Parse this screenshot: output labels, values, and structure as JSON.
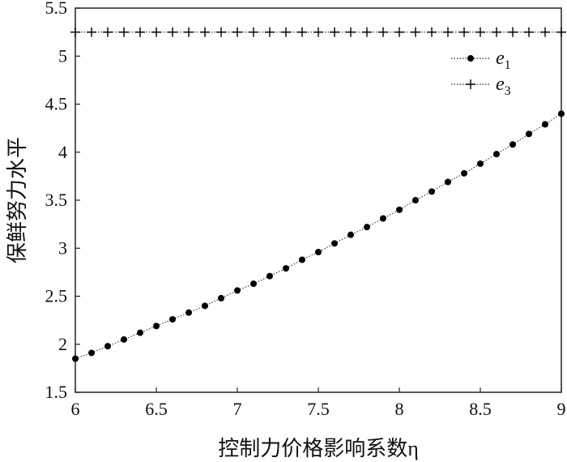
{
  "chart_data": {
    "type": "line",
    "title": "",
    "xlabel": "控制力价格影响系数η",
    "ylabel": "保鲜努力水平",
    "xlim": [
      6,
      9
    ],
    "ylim": [
      1.5,
      5.5
    ],
    "xticks": [
      "6",
      "6.5",
      "7",
      "7.5",
      "8",
      "8.5",
      "9"
    ],
    "yticks": [
      "1.5",
      "2",
      "2.5",
      "3",
      "3.5",
      "4",
      "4.5",
      "5",
      "5.5"
    ],
    "grid": false,
    "legend_position": "top-right",
    "series": [
      {
        "name": "e1",
        "marker": "dot",
        "line": "dotted",
        "x": [
          6.0,
          6.1,
          6.2,
          6.3,
          6.4,
          6.5,
          6.6,
          6.7,
          6.8,
          6.9,
          7.0,
          7.1,
          7.2,
          7.3,
          7.4,
          7.5,
          7.6,
          7.7,
          7.8,
          7.9,
          8.0,
          8.1,
          8.2,
          8.3,
          8.4,
          8.5,
          8.6,
          8.7,
          8.8,
          8.9,
          9.0
        ],
        "y": [
          1.85,
          1.91,
          1.98,
          2.05,
          2.12,
          2.19,
          2.26,
          2.33,
          2.4,
          2.48,
          2.56,
          2.63,
          2.71,
          2.79,
          2.88,
          2.96,
          3.05,
          3.14,
          3.22,
          3.31,
          3.4,
          3.5,
          3.59,
          3.69,
          3.78,
          3.88,
          3.98,
          4.08,
          4.19,
          4.29,
          4.4
        ]
      },
      {
        "name": "e3",
        "marker": "plus",
        "line": "dotted",
        "x": [
          6.0,
          6.1,
          6.2,
          6.3,
          6.4,
          6.5,
          6.6,
          6.7,
          6.8,
          6.9,
          7.0,
          7.1,
          7.2,
          7.3,
          7.4,
          7.5,
          7.6,
          7.7,
          7.8,
          7.9,
          8.0,
          8.1,
          8.2,
          8.3,
          8.4,
          8.5,
          8.6,
          8.7,
          8.8,
          8.9,
          9.0
        ],
        "y": [
          5.25,
          5.25,
          5.25,
          5.25,
          5.25,
          5.25,
          5.25,
          5.25,
          5.25,
          5.25,
          5.25,
          5.25,
          5.25,
          5.25,
          5.25,
          5.25,
          5.25,
          5.25,
          5.25,
          5.25,
          5.25,
          5.25,
          5.25,
          5.25,
          5.25,
          5.25,
          5.25,
          5.25,
          5.25,
          5.25,
          5.25
        ]
      }
    ],
    "legend": [
      {
        "symbol": "e",
        "subscript": "1"
      },
      {
        "symbol": "e",
        "subscript": "3"
      }
    ]
  }
}
